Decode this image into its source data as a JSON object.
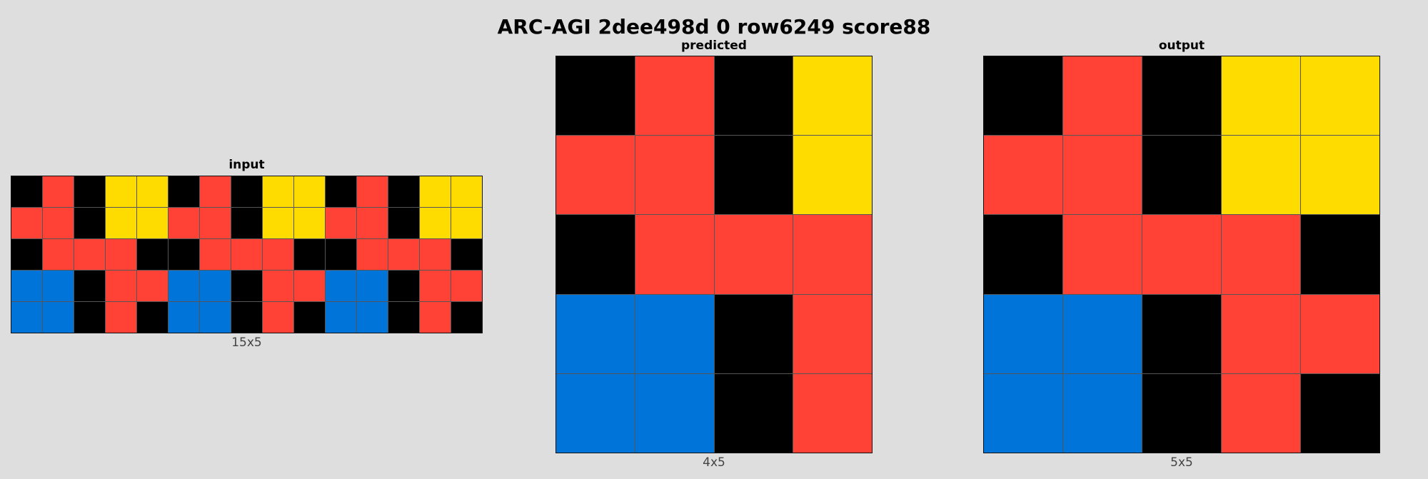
{
  "title": "ARC-AGI 2dee498d 0 row6249 score88",
  "palette": {
    "0": "#000000",
    "1": "#0074d9",
    "2": "#ff4136",
    "4": "#ffdc00"
  },
  "panels": [
    {
      "id": "input",
      "title": "input",
      "caption": "15x5",
      "rows": [
        [
          0,
          2,
          0,
          4,
          4,
          0,
          2,
          0,
          4,
          4,
          0,
          2,
          0,
          4,
          4
        ],
        [
          2,
          2,
          0,
          4,
          4,
          2,
          2,
          0,
          4,
          4,
          2,
          2,
          0,
          4,
          4
        ],
        [
          0,
          2,
          2,
          2,
          0,
          0,
          2,
          2,
          2,
          0,
          0,
          2,
          2,
          2,
          0
        ],
        [
          1,
          1,
          0,
          2,
          2,
          1,
          1,
          0,
          2,
          2,
          1,
          1,
          0,
          2,
          2
        ],
        [
          1,
          1,
          0,
          2,
          0,
          1,
          1,
          0,
          2,
          0,
          1,
          1,
          0,
          2,
          0
        ]
      ]
    },
    {
      "id": "predicted",
      "title": "predicted",
      "caption": "4x5",
      "rows": [
        [
          0,
          2,
          0,
          4
        ],
        [
          2,
          2,
          0,
          4
        ],
        [
          0,
          2,
          2,
          2
        ],
        [
          1,
          1,
          0,
          2
        ],
        [
          1,
          1,
          0,
          2
        ]
      ]
    },
    {
      "id": "output",
      "title": "output",
      "caption": "5x5",
      "rows": [
        [
          0,
          2,
          0,
          4,
          4
        ],
        [
          2,
          2,
          0,
          4,
          4
        ],
        [
          0,
          2,
          2,
          2,
          0
        ],
        [
          1,
          1,
          0,
          2,
          2
        ],
        [
          1,
          1,
          0,
          2,
          0
        ]
      ]
    }
  ]
}
